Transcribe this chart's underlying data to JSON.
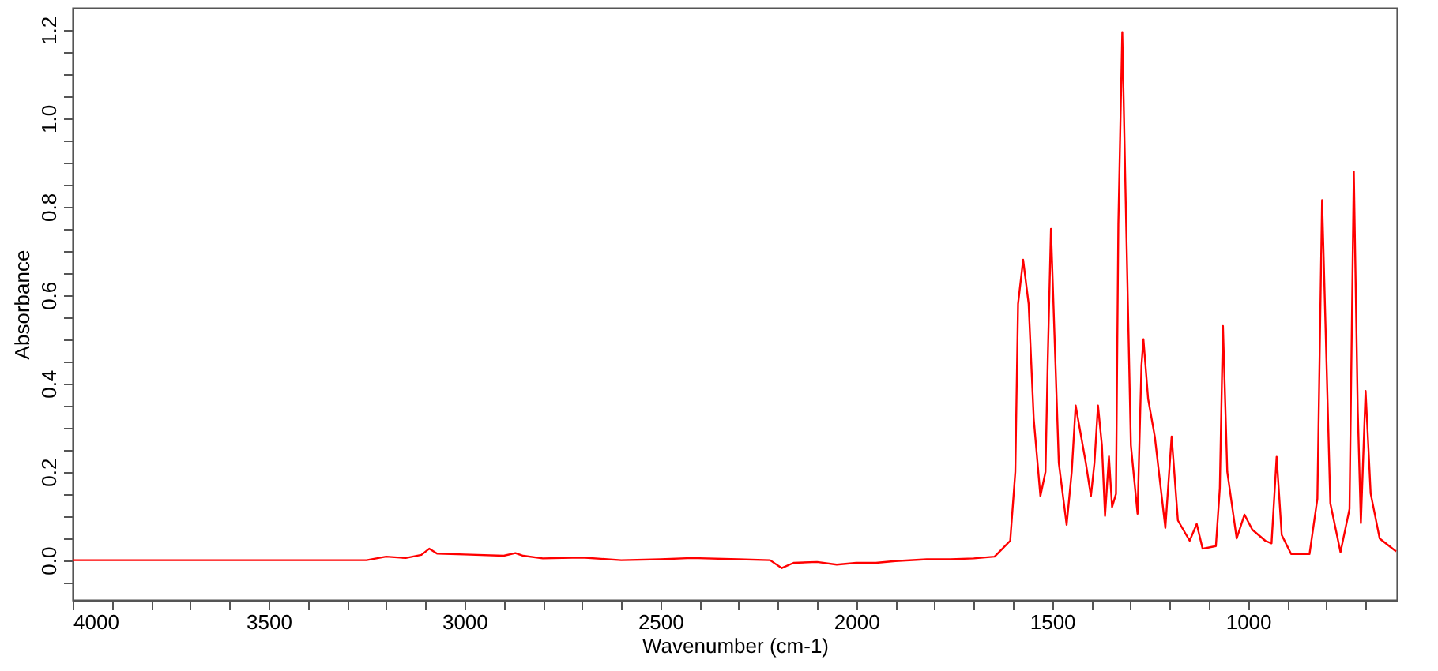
{
  "chart_data": {
    "type": "line",
    "xlabel": "Wavenumber (cm-1)",
    "ylabel": "Absorbance",
    "xlim": [
      4000,
      620
    ],
    "ylim": [
      -0.09,
      1.25
    ],
    "xticks": [
      4000,
      {
        "value": 3900,
        "label": null
      },
      {
        "value": 3800,
        "label": null
      },
      {
        "value": 3700,
        "label": null
      },
      {
        "value": 3600,
        "label": null
      },
      3500,
      {
        "value": 3400,
        "label": null
      },
      {
        "value": 3300,
        "label": null
      },
      {
        "value": 3200,
        "label": null
      },
      {
        "value": 3100,
        "label": null
      },
      3000,
      {
        "value": 2900,
        "label": null
      },
      {
        "value": 2800,
        "label": null
      },
      {
        "value": 2700,
        "label": null
      },
      {
        "value": 2600,
        "label": null
      },
      2500,
      {
        "value": 2400,
        "label": null
      },
      {
        "value": 2300,
        "label": null
      },
      {
        "value": 2200,
        "label": null
      },
      {
        "value": 2100,
        "label": null
      },
      2000,
      {
        "value": 1900,
        "label": null
      },
      {
        "value": 1800,
        "label": null
      },
      {
        "value": 1700,
        "label": null
      },
      {
        "value": 1600,
        "label": null
      },
      1500,
      {
        "value": 1400,
        "label": null
      },
      {
        "value": 1300,
        "label": null
      },
      {
        "value": 1200,
        "label": null
      },
      {
        "value": 1100,
        "label": null
      },
      1000,
      {
        "value": 900,
        "label": null
      },
      {
        "value": 800,
        "label": null
      },
      {
        "value": 700,
        "label": null
      }
    ],
    "yticks": [
      {
        "value": -0.05,
        "label": null
      },
      {
        "value": 0,
        "label": "0.0"
      },
      {
        "value": 0.05,
        "label": null
      },
      {
        "value": 0.1,
        "label": null
      },
      {
        "value": 0.15,
        "label": null
      },
      0.2,
      {
        "value": 0.25,
        "label": null
      },
      {
        "value": 0.3,
        "label": null
      },
      {
        "value": 0.35,
        "label": null
      },
      0.4,
      {
        "value": 0.45,
        "label": null
      },
      {
        "value": 0.5,
        "label": null
      },
      {
        "value": 0.55,
        "label": null
      },
      0.6,
      {
        "value": 0.65,
        "label": null
      },
      {
        "value": 0.7,
        "label": null
      },
      {
        "value": 0.75,
        "label": null
      },
      0.8,
      {
        "value": 0.85,
        "label": null
      },
      {
        "value": 0.9,
        "label": null
      },
      {
        "value": 0.95,
        "label": null
      },
      {
        "value": 1,
        "label": "1.0"
      },
      {
        "value": 1.05,
        "label": null
      },
      {
        "value": 1.1,
        "label": null
      },
      {
        "value": 1.15,
        "label": null
      },
      1.2
    ],
    "grid": false,
    "series": [
      {
        "color": "#ff0000",
        "x": [
          4000,
          3750,
          3250,
          3200,
          3150,
          3110,
          3090,
          3070,
          3000,
          2900,
          2870,
          2850,
          2800,
          2700,
          2600,
          2500,
          2420,
          2300,
          2220,
          2190,
          2160,
          2100,
          2050,
          2000,
          1950,
          1900,
          1820,
          1760,
          1700,
          1647,
          1607,
          1594,
          1587,
          1574,
          1560,
          1547,
          1530,
          1517,
          1511,
          1503,
          1494,
          1483,
          1463,
          1450,
          1440,
          1414,
          1401,
          1392,
          1383,
          1373,
          1365,
          1355,
          1347,
          1337,
          1331,
          1321,
          1311,
          1299,
          1282,
          1272,
          1267,
          1255,
          1238,
          1211,
          1195,
          1179,
          1149,
          1131,
          1116,
          1082,
          1072,
          1064,
          1053,
          1029,
          1009,
          989,
          956,
          940,
          927,
          914,
          890,
          843,
          823,
          811,
          803,
          790,
          764,
          741,
          730,
          720,
          712,
          700,
          687,
          664,
          622
        ],
        "values": [
          0.0,
          0.0,
          0.0,
          0.008,
          0.005,
          0.012,
          0.026,
          0.015,
          0.013,
          0.01,
          0.016,
          0.01,
          0.004,
          0.006,
          0.0,
          0.002,
          0.005,
          0.002,
          0.0,
          -0.018,
          -0.006,
          -0.004,
          -0.01,
          -0.006,
          -0.006,
          -0.002,
          0.002,
          0.002,
          0.004,
          0.008,
          0.044,
          0.2,
          0.58,
          0.68,
          0.58,
          0.32,
          0.145,
          0.2,
          0.46,
          0.75,
          0.51,
          0.22,
          0.08,
          0.2,
          0.35,
          0.22,
          0.145,
          0.22,
          0.35,
          0.26,
          0.1,
          0.235,
          0.12,
          0.15,
          0.76,
          1.195,
          0.76,
          0.26,
          0.105,
          0.44,
          0.5,
          0.365,
          0.28,
          0.073,
          0.28,
          0.09,
          0.044,
          0.082,
          0.026,
          0.032,
          0.163,
          0.53,
          0.2,
          0.049,
          0.103,
          0.069,
          0.044,
          0.038,
          0.234,
          0.057,
          0.014,
          0.014,
          0.139,
          0.815,
          0.555,
          0.129,
          0.018,
          0.116,
          0.88,
          0.34,
          0.084,
          0.383,
          0.151,
          0.049,
          0.02
        ]
      }
    ]
  }
}
